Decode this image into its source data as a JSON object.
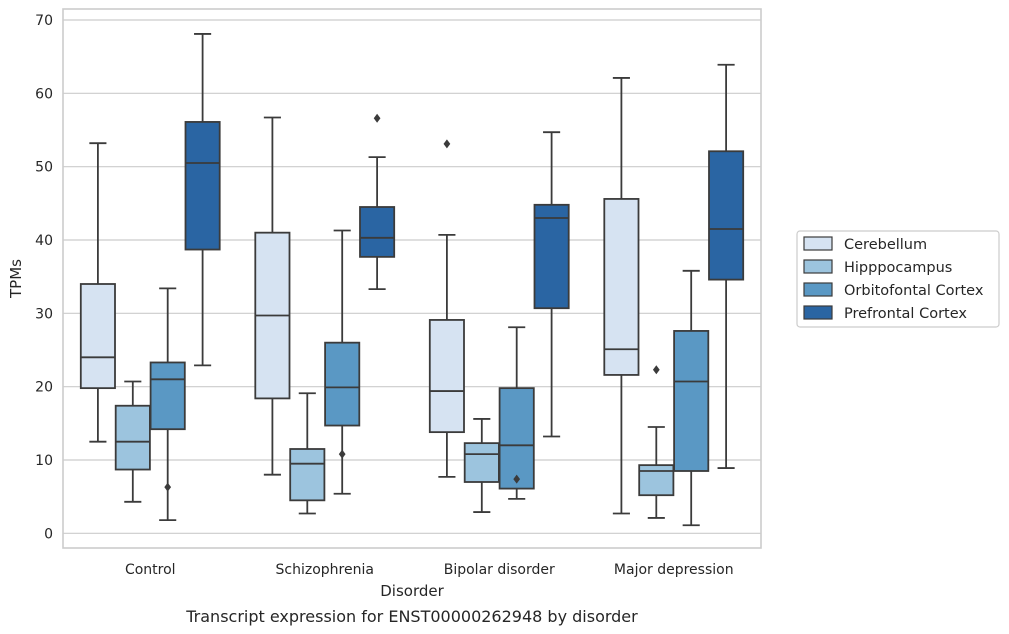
{
  "caption": "Transcript expression for ENST00000262948 by disorder",
  "chart_data": {
    "type": "boxplot",
    "title": "",
    "xlabel": "Disorder",
    "ylabel": "TPMs",
    "ylim": [
      -2,
      71.5
    ],
    "yticks": [
      0,
      10,
      20,
      30,
      40,
      50,
      60,
      70
    ],
    "grid": "horizontal",
    "legend_position": "right-outside",
    "categories": [
      "Control",
      "Schizophrenia",
      "Bipolar disorder",
      "Major depression"
    ],
    "series": [
      {
        "name": "Cerebellum",
        "color": "#d6e3f2",
        "boxes": [
          {
            "whisker_low": 12.5,
            "q1": 19.8,
            "median": 24.0,
            "q3": 34.0,
            "whisker_high": 53.2,
            "outliers": []
          },
          {
            "whisker_low": 8.0,
            "q1": 18.4,
            "median": 29.7,
            "q3": 41.0,
            "whisker_high": 56.7,
            "outliers": []
          },
          {
            "whisker_low": 7.7,
            "q1": 13.8,
            "median": 19.4,
            "q3": 29.1,
            "whisker_high": 40.7,
            "outliers": [
              53.1
            ]
          },
          {
            "whisker_low": 2.7,
            "q1": 21.6,
            "median": 25.1,
            "q3": 45.6,
            "whisker_high": 62.1,
            "outliers": []
          }
        ]
      },
      {
        "name": "Hipppocampus",
        "color": "#9cc4de",
        "boxes": [
          {
            "whisker_low": 4.3,
            "q1": 8.7,
            "median": 12.5,
            "q3": 17.4,
            "whisker_high": 20.7,
            "outliers": []
          },
          {
            "whisker_low": 2.7,
            "q1": 4.5,
            "median": 9.5,
            "q3": 11.5,
            "whisker_high": 19.1,
            "outliers": []
          },
          {
            "whisker_low": 2.9,
            "q1": 7.0,
            "median": 10.8,
            "q3": 12.3,
            "whisker_high": 15.6,
            "outliers": []
          },
          {
            "whisker_low": 2.1,
            "q1": 5.2,
            "median": 8.5,
            "q3": 9.3,
            "whisker_high": 14.5,
            "outliers": [
              22.3
            ]
          }
        ]
      },
      {
        "name": "Orbitofontal Cortex",
        "color": "#5a98c4",
        "boxes": [
          {
            "whisker_low": 1.8,
            "q1": 14.2,
            "median": 21.0,
            "q3": 23.3,
            "whisker_high": 33.4,
            "outliers": [
              6.3
            ]
          },
          {
            "whisker_low": 5.4,
            "q1": 14.7,
            "median": 19.9,
            "q3": 26.0,
            "whisker_high": 41.3,
            "outliers": [
              10.8
            ]
          },
          {
            "whisker_low": 4.7,
            "q1": 6.1,
            "median": 12.0,
            "q3": 19.8,
            "whisker_high": 28.1,
            "outliers": [
              7.4
            ]
          },
          {
            "whisker_low": 1.1,
            "q1": 8.5,
            "median": 20.7,
            "q3": 27.6,
            "whisker_high": 35.8,
            "outliers": []
          }
        ]
      },
      {
        "name": "Prefrontal Cortex",
        "color": "#2a65a3",
        "boxes": [
          {
            "whisker_low": 22.9,
            "q1": 38.7,
            "median": 50.5,
            "q3": 56.1,
            "whisker_high": 68.1,
            "outliers": []
          },
          {
            "whisker_low": 33.3,
            "q1": 37.7,
            "median": 40.3,
            "q3": 44.5,
            "whisker_high": 51.3,
            "outliers": [
              56.6
            ]
          },
          {
            "whisker_low": 13.2,
            "q1": 30.7,
            "median": 43.0,
            "q3": 44.8,
            "whisker_high": 54.7,
            "outliers": []
          },
          {
            "whisker_low": 8.9,
            "q1": 34.6,
            "median": 41.5,
            "q3": 52.1,
            "whisker_high": 63.9,
            "outliers": []
          }
        ]
      }
    ]
  }
}
